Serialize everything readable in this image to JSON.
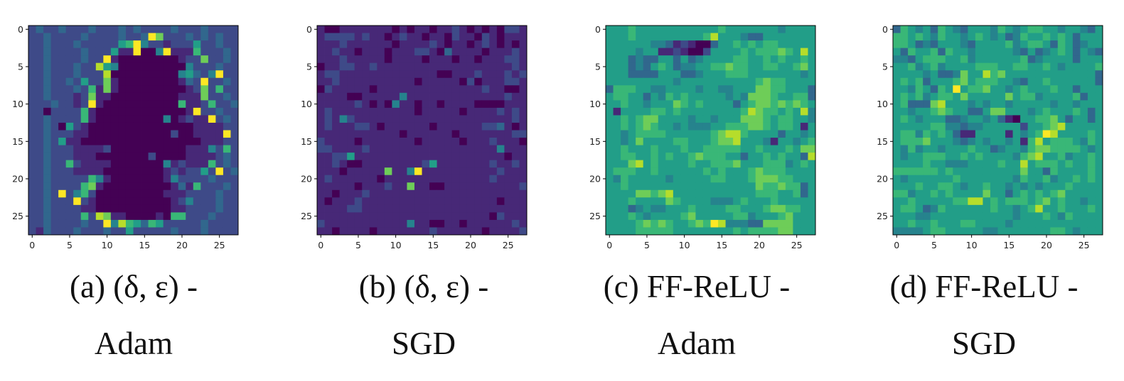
{
  "chart_data": [
    {
      "type": "heatmap",
      "caption_line1": "(a) (δ, ε) -",
      "caption_line2": "Adam",
      "colormap": "viridis",
      "value_range": [
        0,
        9
      ],
      "xticks": [
        "0",
        "5",
        "10",
        "15",
        "20",
        "25"
      ],
      "yticks": [
        "0",
        "5",
        "10",
        "15",
        "20",
        "25"
      ],
      "xlim": [
        -0.5,
        27.5
      ],
      "ylim": [
        27.5,
        -0.5
      ],
      "rows": [
        "2322322232223232222322232222",
        "2232222322223223972223232322",
        "2232223222225694221222522322",
        "2232222322251190049111622232",
        "2232222322910000000012272232",
        "2232223228540000000004222322",
        "2232223222800000000045324922",
        "2232232522710000000013292232",
        "2232223261710000000001272622",
        "2232221271100000000011172232",
        "2223221291000000000061126223",
        "2202222610000000000001922322",
        "2232222610000000004012119232",
        "2232052100000000000000111122",
        "2232221100000000000200111192",
        "2232511000000000000000011122",
        "2232221111200000000001114262",
        "2232221110000000200001111232",
        "2232262111100000004121116232",
        "2232221111000000001212252923",
        "2232222264100000001422223222",
        "2232222671000000000131622232",
        "2232924620000000001112222322",
        "2232229210000000000124222322",
        "2232222110000000000112222322",
        "2232222628711000010662223222",
        "2232222322948653652222232222",
        "2132223222322522222322232222"
      ]
    },
    {
      "type": "heatmap",
      "caption_line1": "(b) (δ, ε) -",
      "caption_line2": "SGD",
      "colormap": "viridis",
      "value_range": [
        0,
        9
      ],
      "xticks": [
        "0",
        "5",
        "10",
        "15",
        "20",
        "25"
      ],
      "yticks": [
        "0",
        "5",
        "10",
        "15",
        "20",
        "25"
      ],
      "xlim": [
        -0.5,
        27.5
      ],
      "ylim": [
        27.5,
        -0.5
      ],
      "rows": [
        "1001111111010110112101010221",
        "1222212110121101102110210111",
        "1112111111011112101101210101",
        "1121101110111221031111011121",
        "1112111110111101110110111221",
        "0112211211111111111111111121",
        "1221111111111111001112111212",
        "1121111111111011111020111221",
        "0211111011111111111111211001",
        "1111001111141111111111111211",
        "1111121010411011011110000111",
        "1211111111111011111011112121",
        "1214211111111111111111111121",
        "1211122101111110111111223101",
        "1111111111101111110111111122",
        "2111101111111011111011121110",
        "2211112111111111111111114111",
        "1122511111111111111111111011",
        "1121001111111125111111121121",
        "1110111117114911111111112111",
        "1211111101111111111111121111",
        "1111101112117110011111111112",
        "1101112111111111111111111111",
        "1011121111111111111111110111",
        "1111221111111111111111111111",
        "1111111111111111111111102111",
        "2111111111114110011011111121",
        "1101111011111112111111011112"
      ]
    },
    {
      "type": "heatmap",
      "caption_line1": "(c) FF-ReLU -",
      "caption_line2": "Adam",
      "colormap": "viridis",
      "value_range": [
        0,
        9
      ],
      "xticks": [
        "0",
        "5",
        "10",
        "15",
        "20",
        "25"
      ],
      "yticks": [
        "0",
        "5",
        "10",
        "15",
        "20",
        "25"
      ],
      "xlim": [
        -0.5,
        27.5
      ],
      "ylim": [
        27.5,
        -0.5
      ],
      "rows": [
        "5556555555555556555555545555",
        "5556555555555685554335555555",
        "5555554431210035565656655555",
        "5555455112100255556566676585",
        "5553433553534555566556565565",
        "5553435653445566766556655675",
        "5553333555334555666555555545",
        "5555555554555555555567665555",
        "3666554455554554455577665553",
        "5665535465655555454777655663",
        "5565545557656555535677676765",
        "5155556656555555556876656584",
        "5565677555545545557776566554",
        "5565676554544455666776566515",
        "5545666655555567886555535545",
        "5545755556655567785554155456",
        "5565556555655666665565556577",
        "5566556565567666553556565538",
        "5557856555565566675556664565",
        "5666556555555656555676665555",
        "5465555545555566555677766555",
        "5565555555555555555576676635",
        "5555776785555555555566655635",
        "5556555576555544456555655555",
        "5553454455565555665556776655",
        "5556545555675555566455567555",
        "5555676765567698444337777555",
        "5555666665555555565666677555"
      ]
    },
    {
      "type": "heatmap",
      "caption_line1": "(d) FF-ReLU -",
      "caption_line2": "SGD",
      "colormap": "viridis",
      "value_range": [
        0,
        9
      ],
      "xticks": [
        "0",
        "5",
        "10",
        "15",
        "20",
        "25"
      ],
      "yticks": [
        "0",
        "5",
        "10",
        "15",
        "20",
        "25"
      ],
      "xlim": [
        -0.5,
        27.5
      ],
      "ylim": [
        27.5,
        -0.5
      ],
      "rows": [
        "3654536543555465456655455435",
        "6656546554565453465565653555",
        "6653435554355556456653653455",
        "5365563655455555435345653543",
        "4435666556455555563455553555",
        "5564564555566655665565455556",
        "5555453347558675555555555553",
        "5656355567566655435565555553",
        "5546536595667554565556553555",
        "5656456657555557566455556355",
        "5633378555454554555554554555",
        "5545567655335775554565556535",
        "5654555334554531055667535535",
        "5555566443445555525567855555",
        "5664656531155551545698555565",
        "5666755543454554516856665465",
        "5464554555655345546776666545",
        "5455666556565555467855645565",
        "5555655444555565585666565565",
        "6666665655555555575536555565",
        "5455555565555555465564556565",
        "5556556654556554545455565555",
        "6645565655557553565656755555",
        "5565555566885656665675655455",
        "5665346555555655456855655565",
        "5554455555555555455565465555",
        "5565565556655554555555555555",
        "4444566555554455555556654555"
      ]
    }
  ]
}
